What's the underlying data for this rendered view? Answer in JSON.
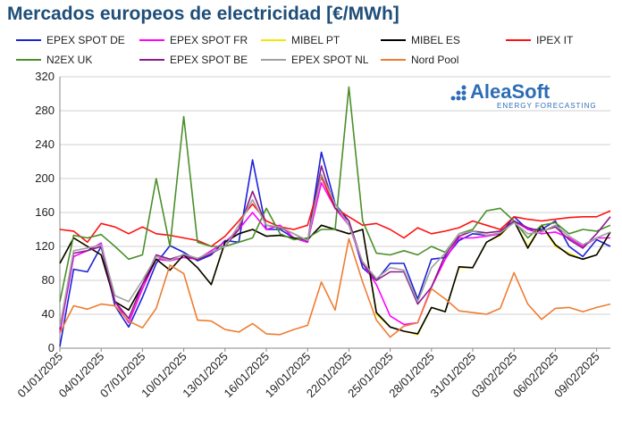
{
  "title": "Mercados europeos de electricidad [€/MWh]",
  "logo": {
    "name": "AleaSoft",
    "tagline": "ENERGY FORECASTING"
  },
  "chart_data": {
    "type": "line",
    "title": "Mercados europeos de electricidad [€/MWh]",
    "ylim": [
      0,
      320
    ],
    "yticks": [
      0,
      40,
      80,
      120,
      160,
      200,
      240,
      280,
      320
    ],
    "grid": true,
    "legend_position": "top",
    "x": [
      "01/01/2025",
      "02/01/2025",
      "03/01/2025",
      "04/01/2025",
      "05/01/2025",
      "06/01/2025",
      "07/01/2025",
      "08/01/2025",
      "09/01/2025",
      "10/01/2025",
      "11/01/2025",
      "12/01/2025",
      "13/01/2025",
      "14/01/2025",
      "15/01/2025",
      "16/01/2025",
      "17/01/2025",
      "18/01/2025",
      "19/01/2025",
      "20/01/2025",
      "21/01/2025",
      "22/01/2025",
      "23/01/2025",
      "24/01/2025",
      "25/01/2025",
      "26/01/2025",
      "27/01/2025",
      "28/01/2025",
      "29/01/2025",
      "30/01/2025",
      "31/01/2025",
      "01/02/2025",
      "02/02/2025",
      "03/02/2025",
      "04/02/2025",
      "05/02/2025",
      "06/02/2025",
      "07/02/2025",
      "08/02/2025",
      "09/02/2025",
      "10/02/2025"
    ],
    "xtick_labels": [
      "01/01/2025",
      "04/01/2025",
      "07/01/2025",
      "10/01/2025",
      "13/01/2025",
      "16/01/2025",
      "19/01/2025",
      "22/01/2025",
      "25/01/2025",
      "28/01/2025",
      "31/01/2025",
      "03/02/2025",
      "06/02/2025",
      "09/02/2025"
    ],
    "series": [
      {
        "name": "EPEX SPOT DE",
        "color": "#1a22d6",
        "values": [
          2,
          93,
          90,
          120,
          50,
          25,
          60,
          100,
          121,
          113,
          103,
          110,
          127,
          125,
          222,
          140,
          140,
          130,
          125,
          231,
          170,
          150,
          95,
          80,
          100,
          100,
          58,
          105,
          107,
          127,
          135,
          133,
          135,
          155,
          140,
          140,
          150,
          120,
          108,
          128,
          120
        ]
      },
      {
        "name": "EPEX SPOT FR",
        "color": "#ff00ff",
        "values": [
          18,
          108,
          115,
          124,
          55,
          30,
          70,
          105,
          103,
          107,
          105,
          115,
          125,
          140,
          160,
          140,
          145,
          130,
          125,
          195,
          165,
          145,
          100,
          75,
          38,
          28,
          30,
          72,
          105,
          130,
          130,
          132,
          135,
          150,
          140,
          135,
          137,
          130,
          120,
          130,
          130
        ]
      },
      {
        "name": "MIBEL PT",
        "color": "#f5e600",
        "values": [
          100,
          130,
          120,
          110,
          55,
          45,
          75,
          105,
          92,
          110,
          95,
          75,
          125,
          135,
          140,
          132,
          133,
          130,
          128,
          145,
          140,
          135,
          140,
          40,
          25,
          20,
          16,
          48,
          43,
          95,
          95,
          125,
          133,
          150,
          120,
          145,
          120,
          112,
          105,
          110,
          137
        ]
      },
      {
        "name": "MIBEL ES",
        "color": "#000000",
        "values": [
          100,
          130,
          120,
          110,
          55,
          45,
          75,
          105,
          92,
          110,
          95,
          75,
          125,
          135,
          140,
          132,
          133,
          130,
          128,
          145,
          140,
          135,
          140,
          42,
          25,
          20,
          17,
          48,
          43,
          96,
          95,
          125,
          134,
          150,
          118,
          145,
          122,
          110,
          105,
          110,
          137
        ]
      },
      {
        "name": "IPEX IT",
        "color": "#ff1010",
        "values": [
          140,
          138,
          125,
          147,
          143,
          135,
          143,
          135,
          133,
          130,
          127,
          120,
          132,
          150,
          170,
          150,
          143,
          140,
          145,
          202,
          165,
          155,
          145,
          147,
          140,
          130,
          142,
          135,
          138,
          142,
          150,
          145,
          140,
          155,
          152,
          150,
          152,
          154,
          155,
          155,
          162
        ]
      },
      {
        "name": "N2EX UK",
        "color": "#4a8f2a",
        "values": [
          55,
          133,
          130,
          134,
          120,
          105,
          110,
          200,
          120,
          273,
          125,
          120,
          120,
          125,
          130,
          165,
          135,
          128,
          130,
          140,
          140,
          308,
          150,
          112,
          110,
          115,
          110,
          120,
          113,
          135,
          140,
          162,
          165,
          150,
          130,
          145,
          148,
          135,
          140,
          138,
          145
        ]
      },
      {
        "name": "EPEX SPOT BE",
        "color": "#8b1a8b",
        "values": [
          22,
          112,
          115,
          120,
          55,
          35,
          75,
          110,
          105,
          110,
          104,
          112,
          120,
          140,
          185,
          145,
          142,
          135,
          126,
          215,
          165,
          150,
          100,
          80,
          90,
          90,
          52,
          72,
          110,
          132,
          138,
          136,
          138,
          150,
          142,
          138,
          143,
          128,
          118,
          135,
          155
        ]
      },
      {
        "name": "EPEX SPOT NL",
        "color": "#a0a0a0",
        "values": [
          25,
          115,
          118,
          122,
          62,
          55,
          80,
          108,
          103,
          111,
          106,
          113,
          120,
          145,
          175,
          145,
          143,
          135,
          127,
          205,
          170,
          145,
          102,
          82,
          95,
          92,
          55,
          95,
          112,
          135,
          138,
          133,
          136,
          148,
          135,
          137,
          145,
          132,
          122,
          130,
          137
        ]
      },
      {
        "name": "Nord Pool",
        "color": "#ee7d31",
        "values": [
          18,
          50,
          46,
          52,
          50,
          32,
          24,
          47,
          98,
          88,
          33,
          32,
          22,
          19,
          29,
          17,
          16,
          22,
          27,
          78,
          45,
          129,
          78,
          33,
          13,
          26,
          30,
          70,
          58,
          44,
          42,
          40,
          47,
          89,
          52,
          34,
          47,
          48,
          43,
          48,
          52
        ]
      }
    ]
  }
}
